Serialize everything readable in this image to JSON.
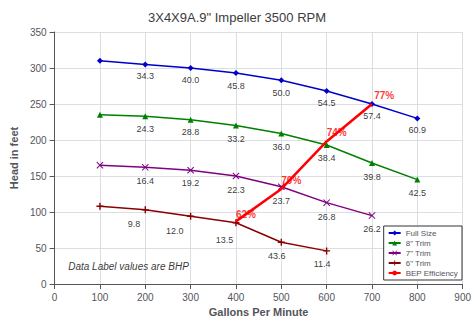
{
  "chart_data": {
    "type": "line",
    "title": "3X4X9A.9\" Impeller 3500 RPM",
    "xlabel": "Gallons Per Minute",
    "ylabel": "Head in feet",
    "xlim": [
      0,
      900
    ],
    "ylim": [
      0,
      350
    ],
    "xticks": [
      0,
      100,
      200,
      300,
      400,
      500,
      600,
      700,
      800,
      900
    ],
    "yticks": [
      0,
      50,
      100,
      150,
      200,
      250,
      300,
      350
    ],
    "grid": true,
    "legend": "lower right",
    "annotations": [
      {
        "text": "Data Label values are BHP",
        "x": 30,
        "y": 18
      }
    ],
    "series": [
      {
        "name": "Full Size",
        "color": "#0000CC",
        "marker": "diamond",
        "x": [
          100,
          200,
          300,
          400,
          500,
          600,
          700,
          800
        ],
        "values": [
          310,
          305,
          300,
          293,
          283,
          268,
          250,
          230
        ],
        "annotations": [
          {
            "text": "34.3",
            "x": 200,
            "y": 295
          },
          {
            "text": "40.0",
            "x": 300,
            "y": 289
          },
          {
            "text": "45.8",
            "x": 400,
            "y": 281
          },
          {
            "text": "50.0",
            "x": 500,
            "y": 271
          },
          {
            "text": "54.5",
            "x": 600,
            "y": 257
          },
          {
            "text": "57.4",
            "x": 700,
            "y": 239
          },
          {
            "text": "60.9",
            "x": 800,
            "y": 220
          }
        ]
      },
      {
        "name": "8\" Trim",
        "color": "#008000",
        "marker": "triangle",
        "x": [
          100,
          200,
          300,
          400,
          500,
          600,
          700,
          800
        ],
        "values": [
          235,
          233,
          228,
          220,
          209,
          193,
          168,
          145
        ],
        "annotations": [
          {
            "text": "24.3",
            "x": 200,
            "y": 222
          },
          {
            "text": "28.8",
            "x": 300,
            "y": 217
          },
          {
            "text": "33.2",
            "x": 400,
            "y": 208
          },
          {
            "text": "36.0",
            "x": 500,
            "y": 197
          },
          {
            "text": "38.4",
            "x": 600,
            "y": 181
          },
          {
            "text": "39.8",
            "x": 700,
            "y": 155
          },
          {
            "text": "42.5",
            "x": 800,
            "y": 133
          }
        ]
      },
      {
        "name": "7\" Trim",
        "color": "#800080",
        "marker": "x",
        "x": [
          100,
          200,
          300,
          400,
          500,
          600,
          700
        ],
        "values": [
          165,
          162,
          158,
          150,
          135,
          113,
          95
        ],
        "annotations": [
          {
            "text": "16.4",
            "x": 200,
            "y": 150
          },
          {
            "text": "19.2",
            "x": 300,
            "y": 146
          },
          {
            "text": "22.3",
            "x": 400,
            "y": 137
          },
          {
            "text": "23.7",
            "x": 500,
            "y": 122
          },
          {
            "text": "26.8",
            "x": 600,
            "y": 100
          },
          {
            "text": "26.2",
            "x": 700,
            "y": 82
          }
        ]
      },
      {
        "name": "6\" Trim",
        "color": "#8B0000",
        "marker": "plus",
        "x": [
          100,
          200,
          300,
          400,
          500,
          600
        ],
        "values": [
          108,
          103,
          94,
          85,
          58,
          46
        ],
        "annotations": [
          {
            "text": "9.8",
            "x": 175,
            "y": 90
          },
          {
            "text": "12.0",
            "x": 265,
            "y": 80
          },
          {
            "text": "13.5",
            "x": 375,
            "y": 68
          },
          {
            "text": "43.6",
            "x": 490,
            "y": 45
          },
          {
            "text": "11.4",
            "x": 590,
            "y": 34
          }
        ]
      },
      {
        "name": "BEP Efficiency",
        "color": "#FF0000",
        "marker": "none",
        "x": [
          400,
          500,
          600,
          700
        ],
        "values": [
          87,
          132,
          198,
          250
        ],
        "annotations": [
          {
            "text": "62%",
            "x": 400,
            "y": 90
          },
          {
            "text": "70%",
            "x": 500,
            "y": 137
          },
          {
            "text": "74%",
            "x": 600,
            "y": 203
          },
          {
            "text": "77%",
            "x": 705,
            "y": 255
          }
        ]
      }
    ]
  }
}
